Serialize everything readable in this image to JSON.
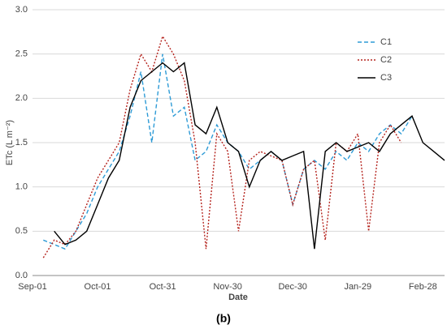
{
  "chart_data": {
    "type": "line",
    "x_label": "Date",
    "y_label": "ETc (L m⁻²)",
    "caption": "(b)",
    "categories": [
      "Sep-01",
      null,
      null,
      null,
      null,
      null,
      "Oct-01",
      null,
      null,
      null,
      null,
      null,
      "Oct-31",
      null,
      null,
      null,
      null,
      null,
      "Nov-30",
      null,
      null,
      null,
      null,
      null,
      "Dec-30",
      null,
      null,
      null,
      null,
      null,
      "Jan-29",
      null,
      null,
      null,
      null,
      null,
      "Feb-28",
      null,
      null
    ],
    "series": [
      {
        "name": "C1",
        "color": "#2e9bd6",
        "dash": "dashed",
        "values": [
          null,
          0.4,
          0.35,
          0.3,
          0.5,
          0.7,
          1.0,
          1.2,
          1.4,
          1.8,
          2.3,
          1.5,
          2.5,
          1.8,
          1.9,
          1.3,
          1.4,
          1.7,
          1.5,
          1.4,
          1.2,
          1.3,
          1.4,
          1.3,
          0.8,
          1.2,
          1.3,
          1.2,
          1.4,
          1.3,
          1.5,
          1.4,
          1.6,
          1.7,
          1.6,
          1.8,
          null,
          null,
          null
        ]
      },
      {
        "name": "C2",
        "color": "#b5241e",
        "dash": "dotted",
        "values": [
          null,
          0.2,
          0.4,
          0.35,
          0.5,
          0.8,
          1.1,
          1.3,
          1.5,
          2.1,
          2.5,
          2.3,
          2.7,
          2.5,
          2.2,
          1.5,
          0.3,
          1.6,
          1.4,
          0.5,
          1.3,
          1.4,
          1.35,
          1.3,
          0.8,
          1.2,
          1.3,
          0.4,
          1.5,
          1.4,
          1.6,
          0.5,
          1.5,
          1.7,
          1.5,
          null,
          null,
          null,
          null
        ]
      },
      {
        "name": "C3",
        "color": "#000000",
        "dash": "solid",
        "values": [
          null,
          null,
          0.5,
          0.35,
          0.4,
          0.5,
          0.8,
          1.1,
          1.3,
          1.9,
          2.2,
          2.3,
          2.4,
          2.3,
          2.4,
          1.7,
          1.6,
          1.9,
          1.5,
          1.4,
          1.0,
          1.3,
          1.4,
          1.3,
          1.35,
          1.4,
          0.3,
          1.4,
          1.5,
          1.4,
          1.45,
          1.5,
          1.4,
          1.6,
          1.7,
          1.8,
          1.5,
          1.4,
          1.3
        ]
      }
    ],
    "ylim": [
      0,
      3
    ],
    "yticks": [
      {
        "value": 0,
        "label": "0.0"
      },
      {
        "value": 0.5,
        "label": "0.5"
      },
      {
        "value": 1,
        "label": "1.0"
      },
      {
        "value": 1.5,
        "label": "1.5"
      },
      {
        "value": 2,
        "label": "2.0"
      },
      {
        "value": 2.5,
        "label": "2.5"
      },
      {
        "value": 3,
        "label": "3.0"
      }
    ],
    "grid": true,
    "legend": "right"
  }
}
